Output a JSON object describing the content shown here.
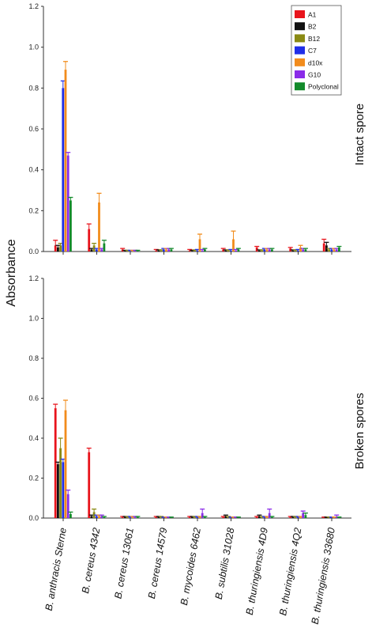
{
  "ylabel": "Absorbance",
  "categories": [
    "B. anthracis Sterne",
    "B. cereus 4342",
    "B. cereus 13061",
    "B. cereus 14579",
    "B. mycoides 6462",
    "B. subtilis 31028",
    "B. thuringiensis 4D9",
    "B. thuringiensis 4Q2",
    "B. thuringiensis 33680"
  ],
  "legend": [
    {
      "name": "A1",
      "color": "#e8141c"
    },
    {
      "name": "B2",
      "color": "#111111"
    },
    {
      "name": "B12",
      "color": "#8a8a14"
    },
    {
      "name": "C7",
      "color": "#1f2ee8"
    },
    {
      "name": "d10x",
      "color": "#f28c1c"
    },
    {
      "name": "G10",
      "color": "#8a2be8"
    },
    {
      "name": "Polyclonal",
      "color": "#128a2a"
    }
  ],
  "yticks": [
    "0.0",
    "0.2",
    "0.4",
    "0.6",
    "0.8",
    "1.0",
    "1.2"
  ],
  "chart_data": [
    {
      "type": "bar",
      "title": "Intact spore",
      "ylim": [
        0,
        1.2
      ],
      "series": [
        {
          "name": "A1",
          "values": [
            0.03,
            0.11,
            0.01,
            0.005,
            0.005,
            0.01,
            0.02,
            0.015,
            0.04
          ],
          "errors": [
            0.025,
            0.025,
            0.005,
            0.005,
            0.005,
            0.005,
            0.005,
            0.005,
            0.02
          ]
        },
        {
          "name": "B2",
          "values": [
            0.02,
            0.01,
            0.003,
            0.005,
            0.003,
            0.005,
            0.005,
            0.005,
            0.03
          ],
          "errors": [
            0.01,
            0.005,
            0.003,
            0.003,
            0.003,
            0.003,
            0.003,
            0.003,
            0.015
          ]
        },
        {
          "name": "B12",
          "values": [
            0.03,
            0.03,
            0.003,
            0.005,
            0.005,
            0.005,
            0.005,
            0.005,
            0.01
          ],
          "errors": [
            0.01,
            0.01,
            0.003,
            0.003,
            0.003,
            0.003,
            0.003,
            0.003,
            0.005
          ]
        },
        {
          "name": "C7",
          "values": [
            0.8,
            0.01,
            0.003,
            0.01,
            0.005,
            0.005,
            0.01,
            0.005,
            0.01
          ],
          "errors": [
            0.035,
            0.005,
            0.003,
            0.005,
            0.005,
            0.005,
            0.005,
            0.005,
            0.005
          ]
        },
        {
          "name": "d10x",
          "values": [
            0.89,
            0.24,
            0.003,
            0.01,
            0.06,
            0.06,
            0.01,
            0.02,
            0.01
          ],
          "errors": [
            0.04,
            0.045,
            0.003,
            0.005,
            0.025,
            0.04,
            0.005,
            0.01,
            0.005
          ]
        },
        {
          "name": "G10",
          "values": [
            0.47,
            0.01,
            0.003,
            0.01,
            0.005,
            0.005,
            0.01,
            0.01,
            0.01
          ],
          "errors": [
            0.015,
            0.005,
            0.003,
            0.005,
            0.005,
            0.005,
            0.005,
            0.005,
            0.005
          ]
        },
        {
          "name": "Polyclonal",
          "values": [
            0.25,
            0.04,
            0.003,
            0.01,
            0.01,
            0.01,
            0.01,
            0.01,
            0.02
          ],
          "errors": [
            0.015,
            0.015,
            0.003,
            0.005,
            0.005,
            0.005,
            0.005,
            0.005,
            0.005
          ]
        }
      ]
    },
    {
      "type": "bar",
      "title": "Broken spores",
      "ylim": [
        0,
        1.2
      ],
      "series": [
        {
          "name": "A1",
          "values": [
            0.55,
            0.33,
            0.005,
            0.005,
            0.005,
            0.005,
            0.005,
            0.005,
            0.003
          ],
          "errors": [
            0.02,
            0.02,
            0.003,
            0.003,
            0.003,
            0.003,
            0.003,
            0.003,
            0.002
          ]
        },
        {
          "name": "B2",
          "values": [
            0.27,
            0.01,
            0.005,
            0.005,
            0.005,
            0.01,
            0.01,
            0.005,
            0.003
          ],
          "errors": [
            0.01,
            0.005,
            0.003,
            0.003,
            0.003,
            0.005,
            0.005,
            0.003,
            0.002
          ]
        },
        {
          "name": "B12",
          "values": [
            0.35,
            0.03,
            0.005,
            0.005,
            0.005,
            0.005,
            0.005,
            0.005,
            0.003
          ],
          "errors": [
            0.05,
            0.015,
            0.003,
            0.003,
            0.003,
            0.003,
            0.003,
            0.003,
            0.002
          ]
        },
        {
          "name": "C7",
          "values": [
            0.28,
            0.01,
            0.005,
            0.003,
            0.005,
            0.003,
            0.005,
            0.005,
            0.003
          ],
          "errors": [
            0.015,
            0.005,
            0.003,
            0.002,
            0.003,
            0.002,
            0.003,
            0.003,
            0.002
          ]
        },
        {
          "name": "d10x",
          "values": [
            0.54,
            0.01,
            0.005,
            0.003,
            0.005,
            0.003,
            0.005,
            0.005,
            0.003
          ],
          "errors": [
            0.05,
            0.005,
            0.003,
            0.002,
            0.003,
            0.002,
            0.003,
            0.003,
            0.002
          ]
        },
        {
          "name": "G10",
          "values": [
            0.12,
            0.01,
            0.005,
            0.003,
            0.025,
            0.003,
            0.025,
            0.025,
            0.005
          ],
          "errors": [
            0.02,
            0.005,
            0.003,
            0.002,
            0.02,
            0.002,
            0.02,
            0.01,
            0.01
          ]
        },
        {
          "name": "Polyclonal",
          "values": [
            0.02,
            0.005,
            0.005,
            0.003,
            0.005,
            0.003,
            0.005,
            0.015,
            0.003
          ],
          "errors": [
            0.01,
            0.003,
            0.003,
            0.002,
            0.003,
            0.002,
            0.003,
            0.01,
            0.002
          ]
        }
      ]
    }
  ]
}
